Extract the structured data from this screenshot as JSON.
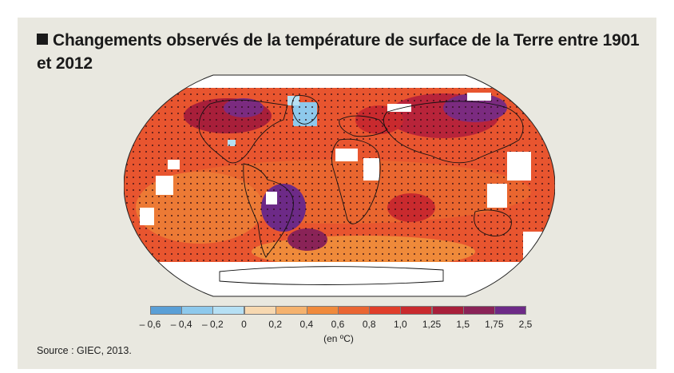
{
  "title": "Changements observés de la température de surface de la Terre entre 1901 et 2012",
  "legend": {
    "unit": "(en ºC)",
    "ticks": [
      "– 0,6",
      "– 0,4",
      "– 0,2",
      "0",
      "0,2",
      "0,4",
      "0,6",
      "0,8",
      "1,0",
      "1,25",
      "1,5",
      "1,75",
      "2,5"
    ],
    "colors": [
      "#5a9fd6",
      "#8ec9ec",
      "#b6e0f4",
      "#f7d8b0",
      "#f5b26e",
      "#f08a3c",
      "#ea6532",
      "#e03e2a",
      "#c92a2e",
      "#a81f3a",
      "#8a2357",
      "#6d2a87"
    ]
  },
  "source": "Source : GIEC, 2013."
}
